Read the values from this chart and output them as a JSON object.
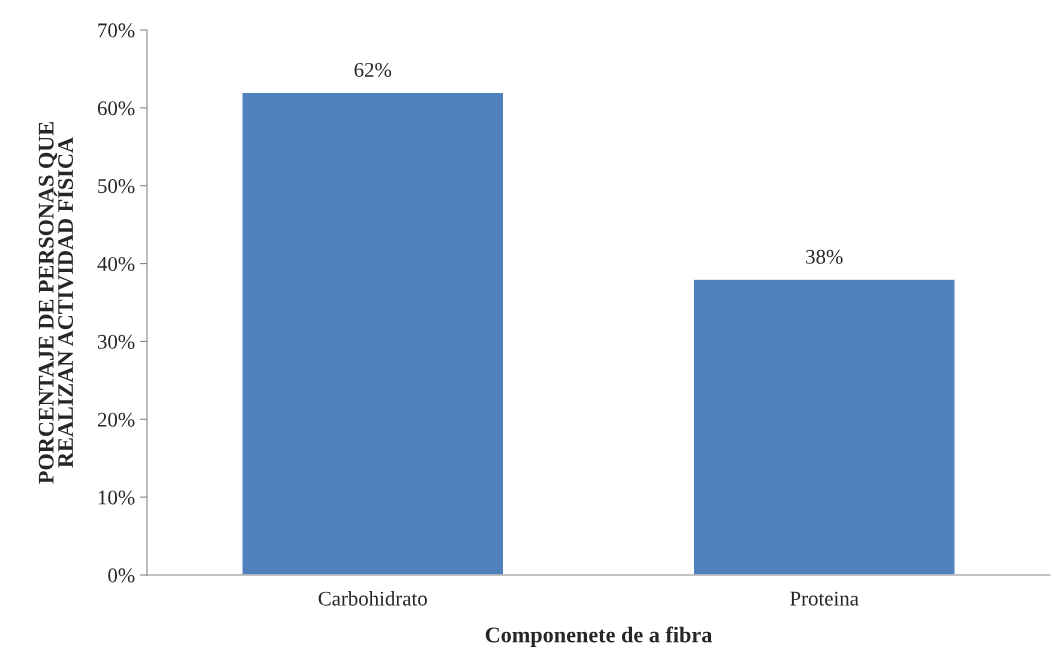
{
  "chart_data": {
    "type": "bar",
    "xlabel": "Componenete de a fibra",
    "ylabel": "PORCENTAJE DE PERSONAS QUE\nREALIZAN ACTIVIDAD FÍSICA",
    "categories": [
      "Carbohidrato",
      "Proteina"
    ],
    "values": [
      62,
      38
    ],
    "value_labels": [
      "62%",
      "38%"
    ],
    "color": "#4f81bd",
    "ylim": [
      0,
      70
    ],
    "yticks": [
      {
        "value": 0,
        "label": "0%"
      },
      {
        "value": 10,
        "label": "10%"
      },
      {
        "value": 20,
        "label": "20%"
      },
      {
        "value": 30,
        "label": "30%"
      },
      {
        "value": 40,
        "label": "40%"
      },
      {
        "value": 50,
        "label": "50%"
      },
      {
        "value": 60,
        "label": "60%"
      },
      {
        "value": 70,
        "label": "70%"
      }
    ],
    "grid": false,
    "legend": false
  }
}
